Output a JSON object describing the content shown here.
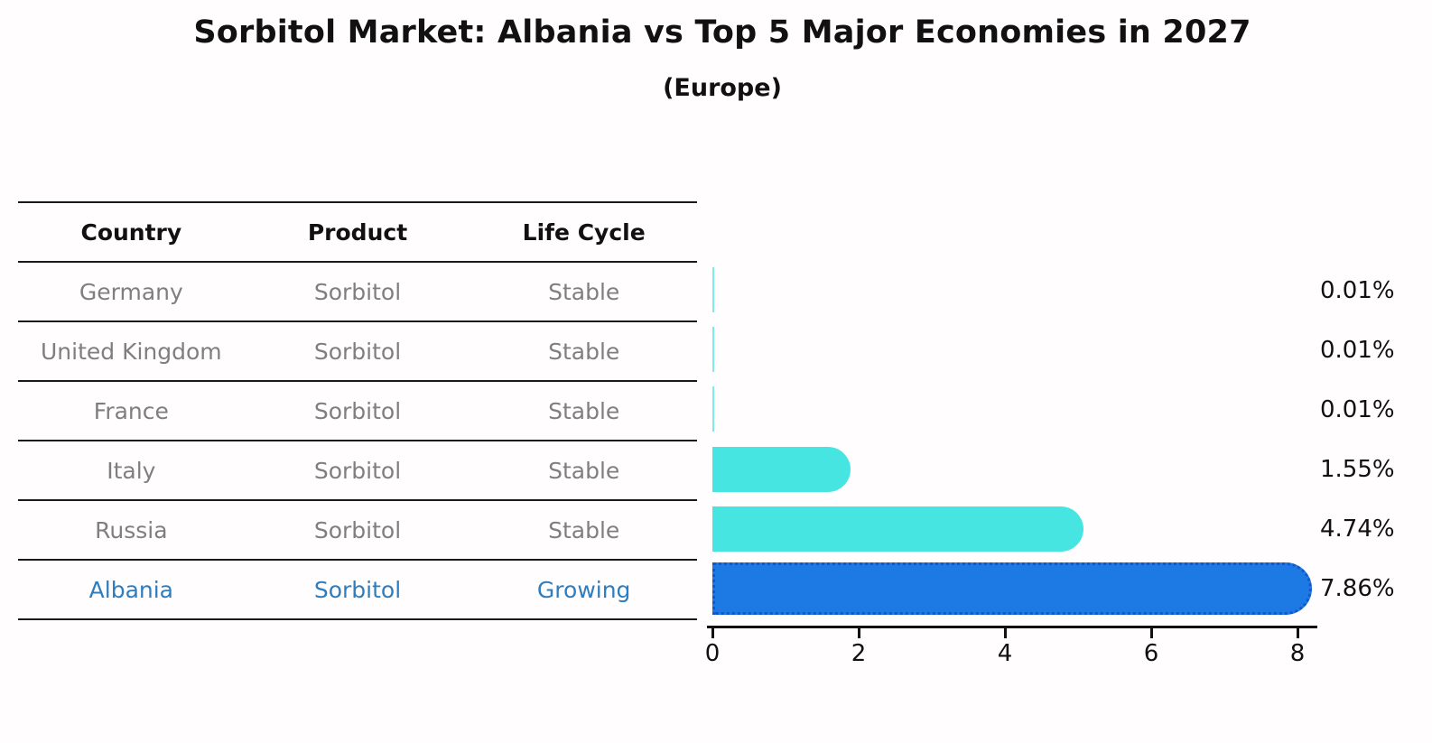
{
  "title": "Sorbitol Market: Albania vs Top 5 Major Economies in 2027",
  "subtitle": "(Europe)",
  "table": {
    "headers": [
      "Country",
      "Product",
      "Life Cycle"
    ],
    "rows": [
      {
        "country": "Germany",
        "product": "Sorbitol",
        "life_cycle": "Stable",
        "highlight": false
      },
      {
        "country": "United Kingdom",
        "product": "Sorbitol",
        "life_cycle": "Stable",
        "highlight": false
      },
      {
        "country": "France",
        "product": "Sorbitol",
        "life_cycle": "Stable",
        "highlight": false
      },
      {
        "country": "Italy",
        "product": "Sorbitol",
        "life_cycle": "Stable",
        "highlight": false
      },
      {
        "country": "Russia",
        "product": "Sorbitol",
        "life_cycle": "Stable",
        "highlight": false
      },
      {
        "country": "Albania",
        "product": "Sorbitol",
        "life_cycle": "Growing",
        "highlight": true
      }
    ]
  },
  "chart_data": {
    "type": "bar",
    "orientation": "horizontal",
    "categories": [
      "Germany",
      "United Kingdom",
      "France",
      "Italy",
      "Russia",
      "Albania"
    ],
    "values": [
      0.01,
      0.01,
      0.01,
      1.55,
      4.74,
      7.86
    ],
    "value_labels": [
      "0.01%",
      "0.01%",
      "0.01%",
      "1.55%",
      "4.74%",
      "7.86%"
    ],
    "highlight_index": 5,
    "xlabel": "",
    "ylabel": "",
    "xlim": [
      0,
      8.3
    ],
    "xticks": [
      0,
      2,
      4,
      6,
      8
    ],
    "grid": false,
    "legend": false,
    "bar_color": "#47e5e1",
    "highlight_bar_color": "#1d79e3",
    "highlight_border_color": "#1257c8"
  },
  "colors": {
    "background": "#fffdfd",
    "table_line": "#1a1a1a",
    "table_text": "#7f7f7f",
    "highlight_text": "#2e7ebf",
    "axis": "#111111"
  }
}
